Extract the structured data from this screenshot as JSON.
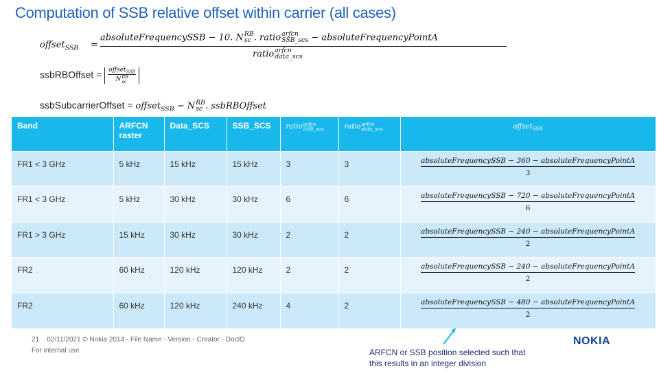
{
  "title": "Computation of SSB relative offset within carrier (all cases)",
  "formula1": {
    "lhs": "offset",
    "lhs_sub": "SSB",
    "eq": "=",
    "num_a": "absoluteFrequencySSB − 10. N",
    "num_a_sup": "RB",
    "num_a_sub": "sc",
    "num_b": ". ratio",
    "num_b_sup": "arfcn",
    "num_b_sub": "SSB_scs",
    "num_c": " − absoluteFrequencyPointA",
    "den": "ratio",
    "den_sup": "arfcn",
    "den_sub": "data_scs"
  },
  "formula2": {
    "label": "ssbRBOffset = ",
    "num": "offset",
    "num_sub": "SSB",
    "den": "N",
    "den_sup": "RB",
    "den_sub": "sc"
  },
  "formula3": {
    "label": "ssbSubcarrierOffset = ",
    "a": "offset",
    "a_sub": "SSB",
    "b": " − N",
    "b_sup": "RB",
    "b_sub": "sc",
    "c": ". ssbRBOffset"
  },
  "table": {
    "headers": {
      "band": "Band",
      "arfcn": "ARFCN raster",
      "data_scs": "Data_SCS",
      "ssb_scs": "SSB_SCS",
      "ratio_ssb": "ratio",
      "ratio_ssb_sup": "arfcn",
      "ratio_ssb_sub": "SSB_scs",
      "ratio_data": "ratio",
      "ratio_data_sup": "arfcn",
      "ratio_data_sub": "data_scs",
      "offset": "offset",
      "offset_sub": "SSB"
    },
    "rows": [
      {
        "band": "FR1 < 3 GHz",
        "arfcn": "5 kHz",
        "data": "15 kHz",
        "ssb": "15 kHz",
        "r1": "3",
        "r2": "3",
        "num": "absoluteFrequencySSB − 360 − absoluteFrequencyPointA",
        "den": "3"
      },
      {
        "band": "FR1 < 3 GHz",
        "arfcn": "5 kHz",
        "data": "30 kHz",
        "ssb": "30 kHz",
        "r1": "6",
        "r2": "6",
        "num": "absoluteFrequencySSB − 720 − absoluteFrequencyPointA",
        "den": "6"
      },
      {
        "band": "FR1 > 3 GHz",
        "arfcn": "15 kHz",
        "data": "30 kHz",
        "ssb": "30 kHz",
        "r1": "2",
        "r2": "2",
        "num": "absoluteFrequencySSB − 240 − absoluteFrequencyPointA",
        "den": "2"
      },
      {
        "band": "FR2",
        "arfcn": "60 kHz",
        "data": "120 kHz",
        "ssb": "120 kHz",
        "r1": "2",
        "r2": "2",
        "num": "absoluteFrequencySSB − 240 − absoluteFrequencyPointA",
        "den": "2"
      },
      {
        "band": "FR2",
        "arfcn": "60 kHz",
        "data": "120 kHz",
        "ssb": "240 kHz",
        "r1": "4",
        "r2": "2",
        "num": "absoluteFrequencySSB − 480 − absoluteFrequencyPointA",
        "den": "2"
      }
    ]
  },
  "footer": {
    "page": "21",
    "info": "02/11/2021 © Nokia 2014  - File Name  - Version  - Creator  - DocID",
    "internal": "For internal use"
  },
  "note": "ARFCN  or SSB position selected such that this results in an integer division",
  "logo": "NOKIA",
  "colors": {
    "title": "#1f63b8",
    "header": "#18b8ec",
    "row_odd": "#cbe9f8",
    "row_even": "#e5f4fc",
    "arrow": "#18b8ec",
    "logo": "#124191"
  }
}
